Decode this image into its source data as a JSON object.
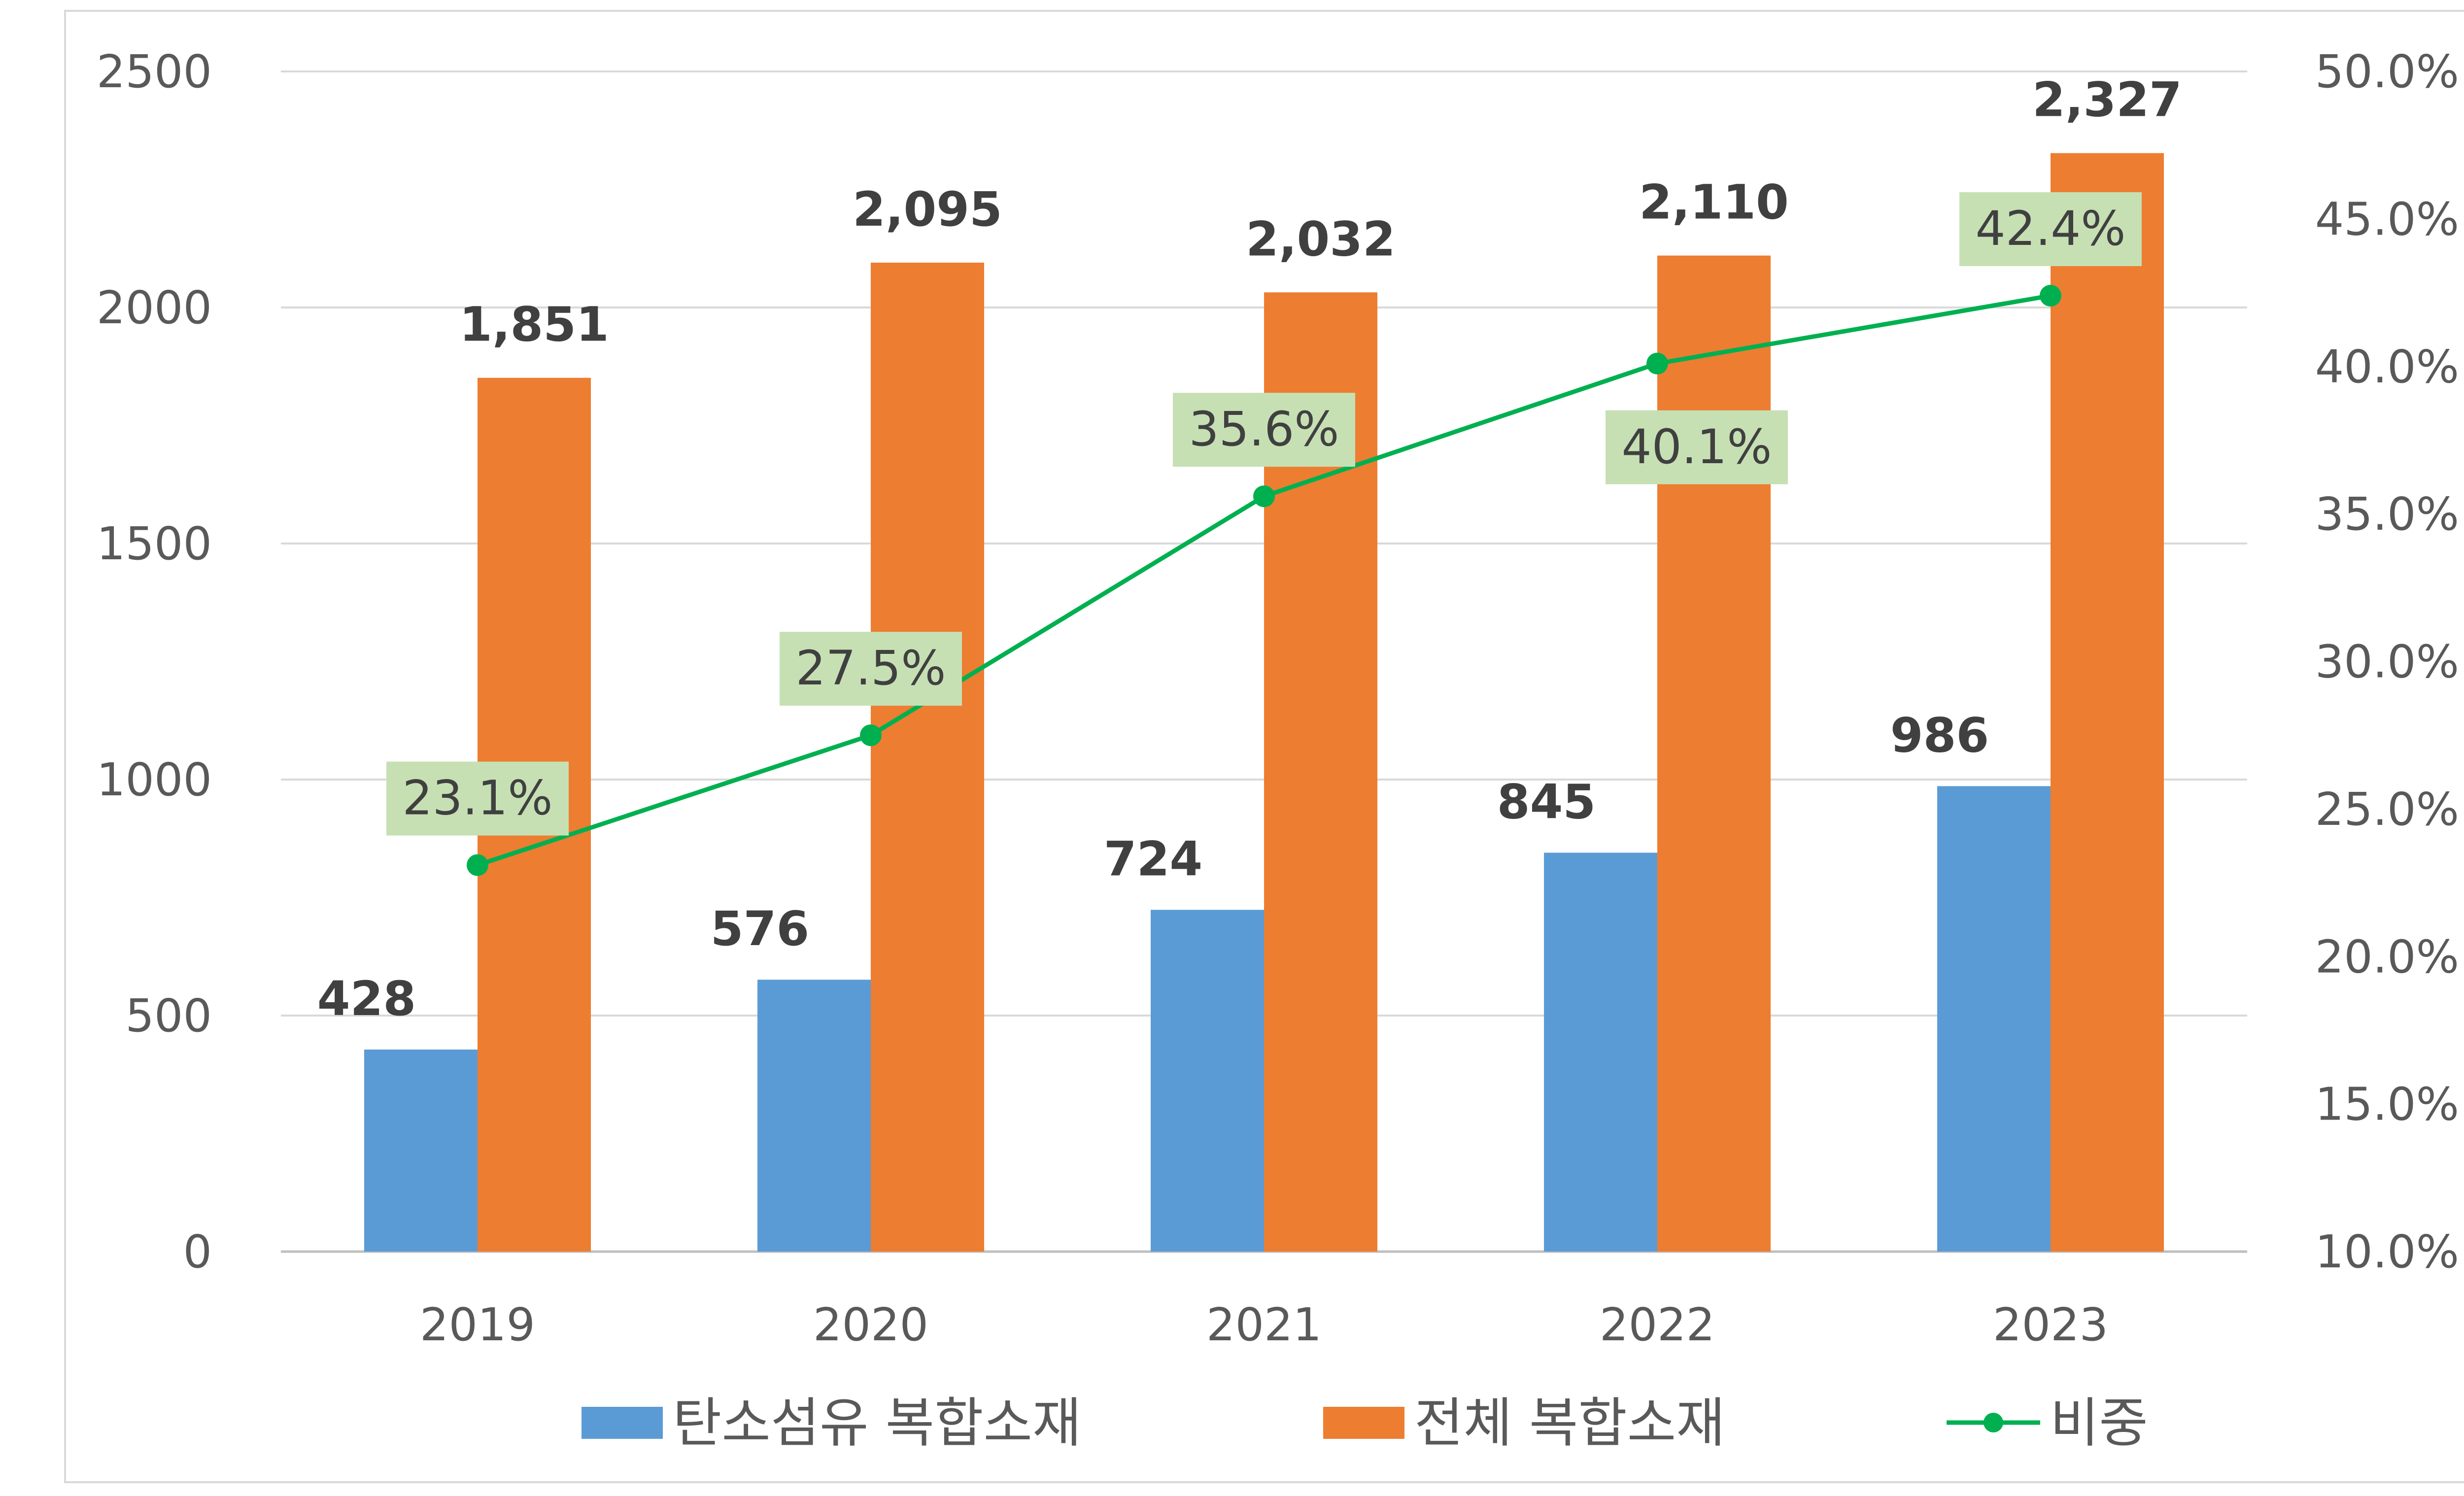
{
  "chart_data": {
    "type": "bar",
    "categories": [
      "2019",
      "2020",
      "2021",
      "2022",
      "2023"
    ],
    "series": [
      {
        "name": "탄소섬유 복합소재",
        "type": "bar",
        "axis": "left",
        "values": [
          428,
          576,
          724,
          845,
          986
        ],
        "labels": [
          "428",
          "576",
          "724",
          "845",
          "986"
        ],
        "color": "#5b9bd5"
      },
      {
        "name": "전체 복합소재",
        "type": "bar",
        "axis": "left",
        "values": [
          1851,
          2095,
          2032,
          2110,
          2327
        ],
        "labels": [
          "1,851",
          "2,095",
          "2,032",
          "2,110",
          "2,327"
        ],
        "color": "#ed7d31"
      },
      {
        "name": "비중",
        "type": "line",
        "axis": "right",
        "values": [
          23.1,
          27.5,
          35.6,
          40.1,
          42.4
        ],
        "labels": [
          "23.1%",
          "27.5%",
          "35.6%",
          "40.1%",
          "42.4%"
        ],
        "color": "#00b050",
        "label_bg": "#c6e0b4"
      }
    ],
    "ylim_left": [
      0,
      2500
    ],
    "yticks_left": [
      "0",
      "500",
      "1000",
      "1500",
      "2000",
      "2500"
    ],
    "ylim_right": [
      10,
      50
    ],
    "yticks_right": [
      "10.0%",
      "15.0%",
      "20.0%",
      "25.0%",
      "30.0%",
      "35.0%",
      "40.0%",
      "45.0%",
      "50.0%"
    ],
    "grid": true,
    "legend_position": "bottom",
    "title": "",
    "xlabel": "",
    "ylabel": ""
  }
}
